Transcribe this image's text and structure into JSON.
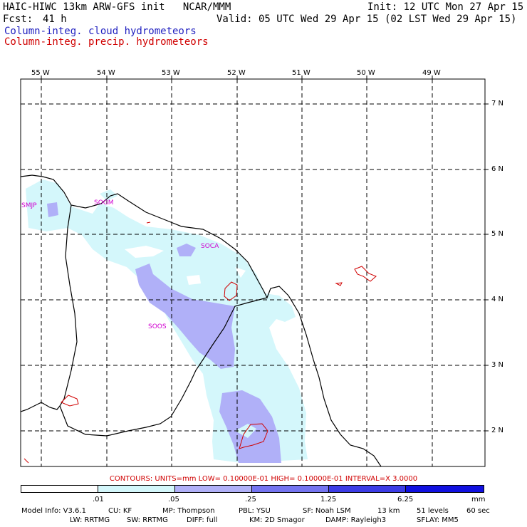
{
  "header": {
    "title": "HAIC-HIWC 13km ARW-GFS init   NCAR/MMM",
    "init": "Init: 12 UTC Mon 27 Apr 15",
    "fcst_label": "Fcst:",
    "fcst_value": "41 h",
    "valid": "Valid: 05 UTC Wed 29 Apr 15 (02 LST Wed 29 Apr 15)",
    "cloud_label": "Column-integ. cloud hydrometeors",
    "precip_label": "Column-integ. precip. hydrometeors"
  },
  "axes": {
    "longitudes": [
      "55 W",
      "54 W",
      "53 W",
      "52 W",
      "51 W",
      "50 W",
      "49 W"
    ],
    "latitudes": [
      "7 N",
      "6 N",
      "5 N",
      "4 N",
      "3 N",
      "2 N"
    ]
  },
  "stations": [
    "SMJP",
    "SOGM",
    "SOCA",
    "SOOS"
  ],
  "contours_text": "CONTOURS:  UNITS=mm  LOW= 0.10000E-01  HIGH= 0.10000E-01  INTERVAL=X  3.0000",
  "colorbar": {
    "ticks": [
      ".01",
      ".05",
      ".25",
      "1.25",
      "6.25"
    ],
    "units": "mm",
    "colors": [
      "#ffffff",
      "#d4f7fb",
      "#b0b0f8",
      "#7474f0",
      "#3c3ce6",
      "#1010e0"
    ]
  },
  "model_info": {
    "line1": [
      "Model Info: V3.6.1",
      "CU: KF",
      "MP: Thompson",
      "PBL: YSU",
      "SF: Noah LSM",
      "13 km",
      "51 levels",
      "60 sec"
    ],
    "line2": [
      "LW: RRTMG",
      "SW: RRTMG",
      "DIFF: full",
      "KM: 2D Smagor",
      "DAMP: Rayleigh3",
      "SFLAY: MM5"
    ]
  }
}
